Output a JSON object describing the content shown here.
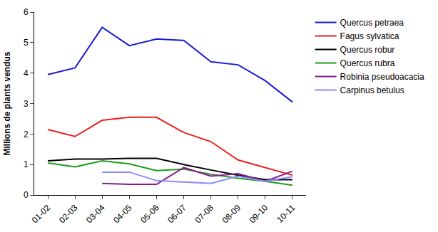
{
  "chart_data": {
    "type": "line",
    "y_label": "Millions de plants vendus",
    "categories": [
      "01-02",
      "02-03",
      "03-04",
      "04-05",
      "05-06",
      "06-07",
      "07-08",
      "08-09",
      "09-10",
      "10-11"
    ],
    "series": [
      {
        "name": "Quercus petraea",
        "color": "#1c1cd4",
        "values": [
          3.95,
          4.17,
          5.5,
          4.9,
          5.12,
          5.07,
          4.37,
          4.27,
          3.75,
          3.05
        ]
      },
      {
        "name": "Fagus sylvatica",
        "color": "#e8201c",
        "values": [
          2.15,
          1.92,
          2.45,
          2.55,
          2.55,
          2.05,
          1.75,
          1.15,
          0.9,
          0.65
        ]
      },
      {
        "name": "Quercus robur",
        "color": "#000000",
        "values": [
          1.12,
          1.18,
          1.18,
          1.2,
          1.2,
          1.0,
          0.82,
          0.65,
          0.5,
          0.5
        ]
      },
      {
        "name": "Quercus rubra",
        "color": "#1c9a1c",
        "values": [
          1.05,
          0.92,
          1.12,
          1.02,
          0.8,
          0.85,
          0.68,
          0.55,
          0.45,
          0.32
        ]
      },
      {
        "name": "Robinia pseudoacacia",
        "color": "#8b1a8b",
        "values": [
          null,
          null,
          0.38,
          0.35,
          0.35,
          0.9,
          0.62,
          0.7,
          0.45,
          0.78
        ]
      },
      {
        "name": "Carpinus betulus",
        "color": "#8a8aff",
        "values": [
          null,
          null,
          0.75,
          0.75,
          0.47,
          0.42,
          0.38,
          0.62,
          0.45,
          0.6
        ]
      }
    ],
    "ylim": [
      0,
      6
    ],
    "yticks": [
      0,
      1,
      2,
      3,
      4,
      5,
      6
    ],
    "grid": false,
    "legend": "right"
  }
}
